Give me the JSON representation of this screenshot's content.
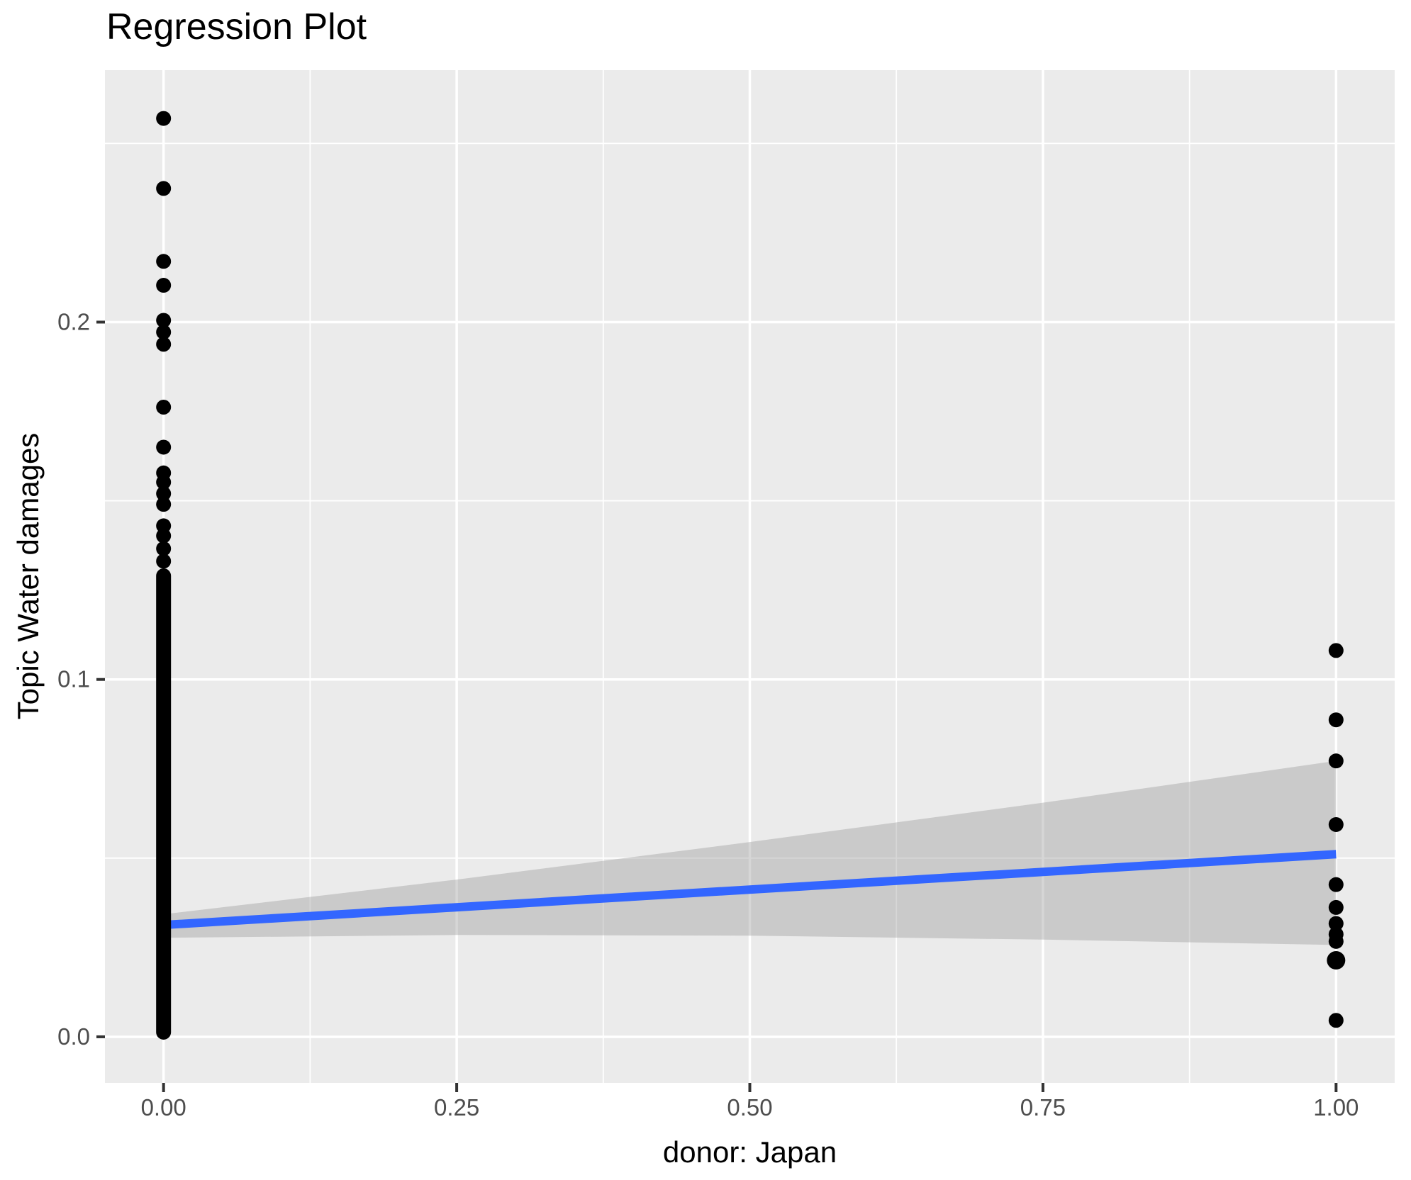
{
  "figure": {
    "background": "#FFFFFF"
  },
  "chart_data": {
    "type": "scatter",
    "title": "Regression Plot",
    "xlabel": "donor: Japan",
    "ylabel": "Topic Water damages",
    "xlim": [
      -0.05,
      1.05
    ],
    "ylim": [
      -0.0129,
      0.2705
    ],
    "grid": "on",
    "legend": "none",
    "x_ticks": {
      "values": [
        0,
        0.25,
        0.5,
        0.75,
        1.0
      ],
      "labels": [
        "0.00",
        "0.25",
        "0.50",
        "0.75",
        "1.00"
      ]
    },
    "y_ticks": {
      "values": [
        0,
        0.1,
        0.2
      ],
      "labels": [
        "0.0",
        "0.1",
        "0.2"
      ]
    },
    "x_minor_gridlines": [
      0.125,
      0.375,
      0.625,
      0.875
    ],
    "y_minor_gridlines": [
      0.05,
      0.15,
      0.25
    ],
    "series": [
      {
        "name": "observations at donor=0 (discrete upper points)",
        "x": 0,
        "values": [
          0.257,
          0.2374,
          0.217,
          0.2103,
          0.2005,
          0.1972,
          0.1938,
          0.1762,
          0.165,
          0.1578,
          0.1552,
          0.152,
          0.149,
          0.143,
          0.1402,
          0.1366,
          0.1331
        ]
      },
      {
        "name": "observations at donor=0 (dense overplotted column)",
        "x": 0,
        "y_min": 0.0,
        "y_max": 0.129,
        "note": "hundreds of overplotted points forming a solid black column from 0 to ~0.129"
      },
      {
        "name": "observations at donor=1",
        "x": 1,
        "values": [
          0.1081,
          0.0887,
          0.0772,
          0.0594,
          0.0426,
          0.0362,
          0.0317,
          0.0287,
          0.0267,
          0.0214,
          0.0046
        ],
        "radii": [
          10.5,
          10.5,
          10.5,
          10.5,
          10.5,
          10.5,
          10.5,
          10.5,
          10.5,
          13,
          10.5
        ]
      }
    ],
    "regression_line": {
      "x": [
        0,
        1
      ],
      "y": [
        0.0313,
        0.0511
      ],
      "color": "#3366FF",
      "width": 12
    },
    "confidence_band": {
      "x": [
        0,
        0.25,
        0.5,
        0.75,
        1.0
      ],
      "upper": [
        0.0343,
        0.044,
        0.0545,
        0.0655,
        0.0772
      ],
      "lower": [
        0.0277,
        0.0285,
        0.0283,
        0.0272,
        0.0257
      ],
      "color": "#999999",
      "opacity": 0.4
    },
    "colors": {
      "panel_background": "#EBEBEB",
      "gridline": "#FFFFFF",
      "point": "#000000",
      "tick_label": "#4D4D4D",
      "tick_mark": "#333333",
      "title_text": "#000000"
    },
    "point_radius": 10.5
  }
}
